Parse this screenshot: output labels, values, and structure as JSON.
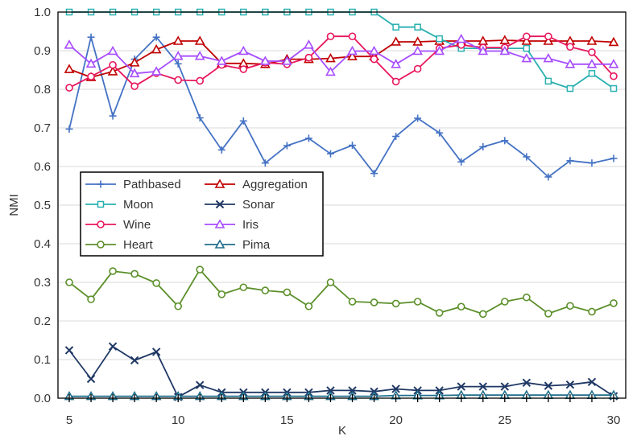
{
  "chart_data": {
    "type": "line",
    "title": "",
    "xlabel": "K",
    "ylabel": "NMI",
    "xlim": [
      5,
      30
    ],
    "ylim": [
      0,
      1
    ],
    "x_ticks": [
      5,
      10,
      15,
      20,
      25,
      30
    ],
    "y_ticks": [
      0.0,
      0.1,
      0.2,
      0.3,
      0.4,
      0.5,
      0.6,
      0.7,
      0.8,
      0.9,
      1.0
    ],
    "y_tick_labels": [
      "0.0",
      "0.1",
      "0.2",
      "0.3",
      "0.4",
      "0.5",
      "0.6",
      "0.7",
      "0.8",
      "0.9",
      "1.0"
    ],
    "grid": "horizontal",
    "legend_position": "center-left",
    "x": [
      5,
      6,
      7,
      8,
      9,
      10,
      11,
      12,
      13,
      14,
      15,
      16,
      17,
      18,
      19,
      20,
      21,
      22,
      23,
      24,
      25,
      26,
      27,
      28,
      29,
      30
    ],
    "series": [
      {
        "name": "Pathbased",
        "color": "#4472c4",
        "marker": "plus",
        "values": [
          0.697,
          0.935,
          0.731,
          0.878,
          0.935,
          0.866,
          0.726,
          0.643,
          0.718,
          0.609,
          0.654,
          0.673,
          0.633,
          0.655,
          0.582,
          0.678,
          0.725,
          0.687,
          0.612,
          0.651,
          0.667,
          0.625,
          0.573,
          0.615,
          0.609,
          0.621
        ]
      },
      {
        "name": "Aggregation",
        "color": "#c00000",
        "marker": "triangle",
        "values": [
          0.852,
          0.831,
          0.846,
          0.869,
          0.903,
          0.925,
          0.925,
          0.867,
          0.867,
          0.865,
          0.878,
          0.878,
          0.88,
          0.885,
          0.885,
          0.923,
          0.923,
          0.925,
          0.925,
          0.925,
          0.927,
          0.925,
          0.925,
          0.925,
          0.925,
          0.922
        ]
      },
      {
        "name": "Moon",
        "color": "#2ab0b0",
        "marker": "square",
        "values": [
          1.0,
          1.0,
          1.0,
          1.0,
          1.0,
          1.0,
          1.0,
          1.0,
          1.0,
          1.0,
          1.0,
          1.0,
          1.0,
          1.0,
          1.0,
          0.961,
          0.961,
          0.931,
          0.906,
          0.906,
          0.906,
          0.906,
          0.821,
          0.802,
          0.841,
          0.802
        ]
      },
      {
        "name": "Sonar",
        "color": "#1f3864",
        "marker": "x",
        "values": [
          0.124,
          0.05,
          0.134,
          0.098,
          0.12,
          0.003,
          0.034,
          0.015,
          0.015,
          0.015,
          0.015,
          0.015,
          0.02,
          0.02,
          0.017,
          0.024,
          0.02,
          0.02,
          0.03,
          0.03,
          0.03,
          0.04,
          0.032,
          0.035,
          0.042,
          0.005
        ]
      },
      {
        "name": "Wine",
        "color": "#e8175d",
        "marker": "circle",
        "values": [
          0.804,
          0.833,
          0.863,
          0.808,
          0.842,
          0.824,
          0.822,
          0.863,
          0.852,
          0.869,
          0.865,
          0.882,
          0.937,
          0.937,
          0.878,
          0.82,
          0.853,
          0.906,
          0.915,
          0.908,
          0.908,
          0.937,
          0.937,
          0.91,
          0.896,
          0.834
        ]
      },
      {
        "name": "Iris",
        "color": "#a64dff",
        "marker": "triangle",
        "values": [
          0.915,
          0.866,
          0.899,
          0.841,
          0.846,
          0.886,
          0.886,
          0.873,
          0.899,
          0.873,
          0.873,
          0.915,
          0.845,
          0.899,
          0.899,
          0.865,
          0.899,
          0.899,
          0.93,
          0.899,
          0.899,
          0.88,
          0.88,
          0.865,
          0.865,
          0.865
        ]
      },
      {
        "name": "Heart",
        "color": "#5b8f29",
        "marker": "circle",
        "values": [
          0.3,
          0.256,
          0.329,
          0.322,
          0.298,
          0.238,
          0.333,
          0.269,
          0.287,
          0.279,
          0.274,
          0.238,
          0.3,
          0.25,
          0.248,
          0.245,
          0.25,
          0.221,
          0.237,
          0.218,
          0.25,
          0.261,
          0.219,
          0.239,
          0.224,
          0.246
        ]
      },
      {
        "name": "Pima",
        "color": "#1f6e8c",
        "marker": "triangle",
        "values": [
          0.005,
          0.005,
          0.005,
          0.005,
          0.005,
          0.005,
          0.005,
          0.005,
          0.005,
          0.005,
          0.005,
          0.005,
          0.005,
          0.005,
          0.005,
          0.007,
          0.007,
          0.007,
          0.008,
          0.008,
          0.008,
          0.008,
          0.008,
          0.008,
          0.008,
          0.008
        ]
      }
    ]
  }
}
